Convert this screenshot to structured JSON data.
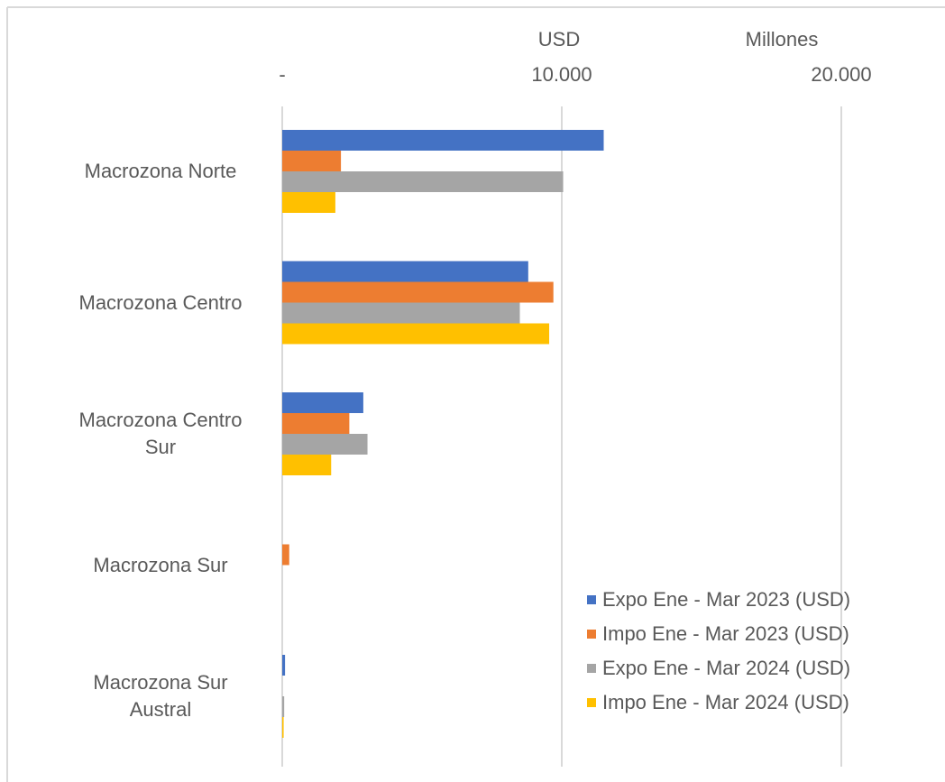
{
  "chart_data": {
    "type": "hbar",
    "units": [
      "USD",
      "Millones"
    ],
    "categories": [
      "Macrozona Norte",
      "Macrozona Centro",
      "Macrozona Centro Sur",
      "Macrozona Sur",
      "Macrozona Sur Austral"
    ],
    "series": [
      {
        "name": "Expo Ene - Mar 2023 (USD)",
        "color": "#4472c4",
        "values": [
          11500,
          8800,
          2900,
          0,
          100
        ]
      },
      {
        "name": "Impo Ene - Mar 2023 (USD)",
        "color": "#ed7d31",
        "values": [
          2100,
          9700,
          2400,
          250,
          0
        ]
      },
      {
        "name": "Expo Ene - Mar 2024 (USD)",
        "color": "#a5a5a5",
        "values": [
          10050,
          8500,
          3050,
          0,
          70
        ]
      },
      {
        "name": "Impo Ene - Mar 2024 (USD)",
        "color": "#ffc000",
        "values": [
          1900,
          9550,
          1750,
          0,
          50
        ]
      }
    ],
    "xlim": [
      0,
      23700
    ],
    "xticks": [
      {
        "value": 0,
        "label": "-"
      },
      {
        "value": 10000,
        "label": "10.000"
      },
      {
        "value": 20000,
        "label": "20.000"
      }
    ],
    "grid": true,
    "legend": "bottom-right"
  }
}
